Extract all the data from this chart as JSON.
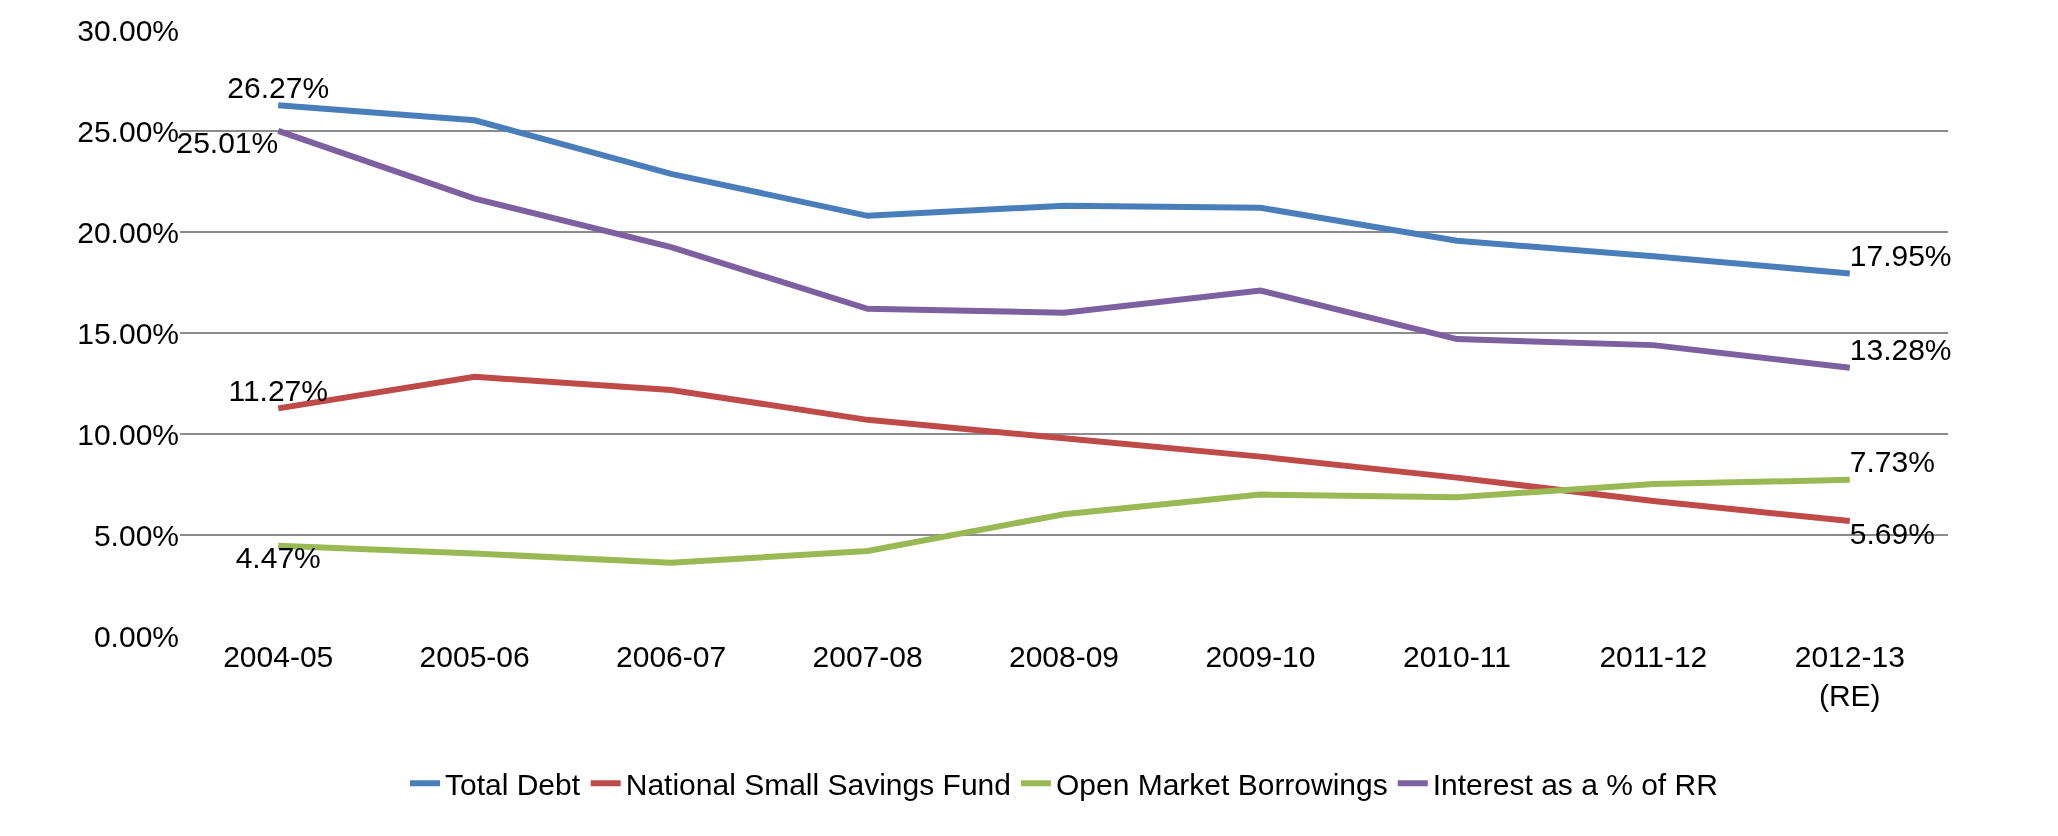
{
  "chart_data": {
    "type": "line",
    "categories": [
      "2004-05",
      "2005-06",
      "2006-07",
      "2007-08",
      "2008-09",
      "2009-10",
      "2010-11",
      "2011-12",
      "2012-13\n(RE)"
    ],
    "series": [
      {
        "name": "Total Debt",
        "color": "#4a7ebb",
        "values": [
          26.27,
          25.53,
          22.88,
          20.8,
          21.3,
          21.2,
          19.57,
          18.8,
          17.95
        ],
        "value_labels": [
          "26.27%",
          null,
          null,
          null,
          null,
          null,
          null,
          null,
          "17.95%"
        ]
      },
      {
        "name": "National Small Savings Fund",
        "color": "#be4b48",
        "values": [
          11.27,
          12.83,
          12.18,
          10.7,
          9.79,
          8.88,
          7.84,
          6.68,
          5.69
        ],
        "value_labels": [
          "11.27%",
          null,
          null,
          null,
          null,
          null,
          null,
          null,
          "5.69%"
        ]
      },
      {
        "name": "Open Market Borrowings",
        "color": "#98b954",
        "values": [
          4.47,
          4.08,
          3.63,
          4.21,
          6.03,
          7.0,
          6.87,
          7.52,
          7.73
        ],
        "value_labels": [
          "4.47%",
          null,
          null,
          null,
          null,
          null,
          null,
          null,
          "7.73%"
        ]
      },
      {
        "name": "Interest as a % of RR",
        "color": "#7d60a0",
        "values": [
          25.01,
          21.65,
          19.25,
          16.2,
          16.0,
          17.1,
          14.7,
          14.4,
          13.28
        ],
        "value_labels": [
          "25.01%",
          null,
          null,
          null,
          null,
          null,
          null,
          null,
          "13.28%"
        ]
      }
    ],
    "ylim": [
      0,
      30
    ],
    "yticks": [
      {
        "value": 0,
        "label": "0.00%"
      },
      {
        "value": 5,
        "label": "5.00%"
      },
      {
        "value": 10,
        "label": "10.00%"
      },
      {
        "value": 15,
        "label": "15.00%"
      },
      {
        "value": 20,
        "label": "20.00%"
      },
      {
        "value": 25,
        "label": "25.00%"
      },
      {
        "value": 30,
        "label": "30.00%"
      }
    ],
    "grid": "y",
    "legend": "bottom",
    "marker": "none",
    "line_style": "solid"
  }
}
